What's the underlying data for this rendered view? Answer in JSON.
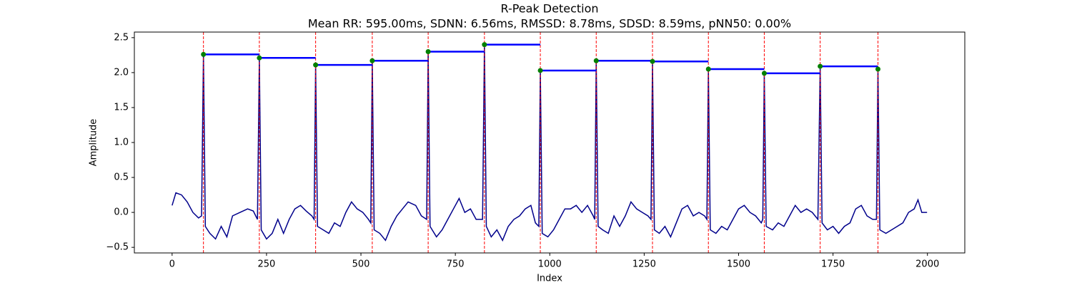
{
  "chart_data": {
    "type": "line",
    "title": "R-Peak Detection",
    "subtitle": "Mean RR: 595.00ms, SDNN: 6.56ms, RMSSD: 8.78ms, SDSD: 8.59ms, pNN50: 0.00%",
    "xlabel": "Index",
    "ylabel": "Amplitude",
    "xlim": [
      -99.95,
      2098.95
    ],
    "ylim": [
      -0.58,
      2.58
    ],
    "xticks": [
      0,
      250,
      500,
      750,
      1000,
      1250,
      1500,
      1750,
      2000
    ],
    "yticks": [
      {
        "value": -0.5,
        "label": "−0.5"
      },
      {
        "value": 0,
        "label": "0.0"
      },
      0.5,
      {
        "value": 1,
        "label": "1.0"
      },
      1.5,
      {
        "value": 2,
        "label": "2.0"
      },
      2.5
    ],
    "signal": {
      "color": "#00008b",
      "x": [
        0,
        10,
        25,
        40,
        55,
        70,
        78,
        83,
        88,
        100,
        115,
        130,
        145,
        160,
        180,
        200,
        215,
        226,
        231,
        236,
        250,
        265,
        280,
        295,
        310,
        325,
        340,
        355,
        370,
        376,
        380,
        385,
        400,
        415,
        430,
        445,
        460,
        475,
        490,
        505,
        520,
        526,
        530,
        535,
        550,
        565,
        580,
        595,
        610,
        625,
        645,
        660,
        674,
        678,
        683,
        700,
        715,
        730,
        745,
        760,
        775,
        790,
        805,
        822,
        827,
        832,
        845,
        860,
        875,
        890,
        905,
        920,
        935,
        950,
        962,
        971,
        975,
        980,
        995,
        1010,
        1025,
        1040,
        1055,
        1070,
        1085,
        1100,
        1115,
        1119,
        1123,
        1128,
        1140,
        1155,
        1170,
        1185,
        1200,
        1215,
        1230,
        1245,
        1260,
        1268,
        1272,
        1277,
        1290,
        1305,
        1320,
        1335,
        1350,
        1365,
        1380,
        1395,
        1410,
        1416,
        1420,
        1425,
        1440,
        1455,
        1470,
        1485,
        1500,
        1515,
        1530,
        1545,
        1560,
        1564,
        1568,
        1573,
        1590,
        1605,
        1620,
        1635,
        1650,
        1665,
        1680,
        1695,
        1710,
        1716,
        1721,
        1735,
        1750,
        1765,
        1780,
        1795,
        1810,
        1825,
        1840,
        1855,
        1865,
        1869,
        1874,
        1890,
        1905,
        1920,
        1935,
        1950,
        1965,
        1975,
        1985,
        1999
      ],
      "values": [
        0.1,
        0.28,
        0.25,
        0.15,
        0.0,
        -0.08,
        -0.05,
        2.26,
        -0.2,
        -0.3,
        -0.38,
        -0.2,
        -0.35,
        -0.05,
        0.0,
        0.05,
        0.02,
        -0.1,
        2.21,
        -0.25,
        -0.38,
        -0.3,
        -0.1,
        -0.3,
        -0.1,
        0.05,
        0.1,
        0.02,
        -0.05,
        -0.1,
        2.11,
        -0.2,
        -0.25,
        -0.3,
        -0.15,
        -0.2,
        0.0,
        0.15,
        0.05,
        0.0,
        -0.1,
        -0.15,
        2.17,
        -0.25,
        -0.3,
        -0.4,
        -0.2,
        -0.05,
        0.05,
        0.15,
        0.1,
        -0.05,
        -0.1,
        2.3,
        -0.2,
        -0.35,
        -0.25,
        -0.1,
        0.05,
        0.2,
        0.0,
        0.05,
        -0.1,
        -0.1,
        2.4,
        -0.2,
        -0.35,
        -0.25,
        -0.4,
        -0.2,
        -0.1,
        -0.05,
        0.05,
        0.1,
        -0.15,
        -0.2,
        2.03,
        -0.3,
        -0.35,
        -0.25,
        -0.1,
        0.05,
        0.05,
        0.1,
        0.0,
        0.1,
        -0.05,
        -0.1,
        2.17,
        -0.2,
        -0.25,
        -0.3,
        -0.05,
        -0.2,
        -0.05,
        0.15,
        0.05,
        0.0,
        -0.05,
        -0.1,
        2.16,
        -0.25,
        -0.3,
        -0.2,
        -0.35,
        -0.15,
        0.05,
        0.1,
        -0.05,
        0.0,
        -0.05,
        -0.1,
        2.05,
        -0.25,
        -0.3,
        -0.2,
        -0.25,
        -0.1,
        0.05,
        0.1,
        0.0,
        -0.05,
        -0.15,
        -0.1,
        1.99,
        -0.2,
        -0.25,
        -0.15,
        -0.2,
        -0.05,
        0.1,
        0.0,
        0.05,
        0.0,
        -0.1,
        2.09,
        -0.15,
        -0.25,
        -0.2,
        -0.3,
        -0.2,
        -0.15,
        0.05,
        0.1,
        -0.05,
        -0.1,
        -0.1,
        2.05,
        -0.25,
        -0.3,
        -0.25,
        -0.2,
        -0.15,
        0.0,
        0.05,
        0.18,
        0.0,
        0.0
      ]
    },
    "peaks": {
      "color": "green",
      "interval_color": "blue",
      "marker_line_color": "red",
      "x": [
        83,
        231,
        380,
        530,
        678,
        827,
        975,
        1123,
        1272,
        1420,
        1568,
        1716,
        1869
      ],
      "values": [
        2.26,
        2.21,
        2.11,
        2.17,
        2.3,
        2.4,
        2.03,
        2.17,
        2.16,
        2.05,
        1.99,
        2.09,
        2.05
      ]
    }
  }
}
